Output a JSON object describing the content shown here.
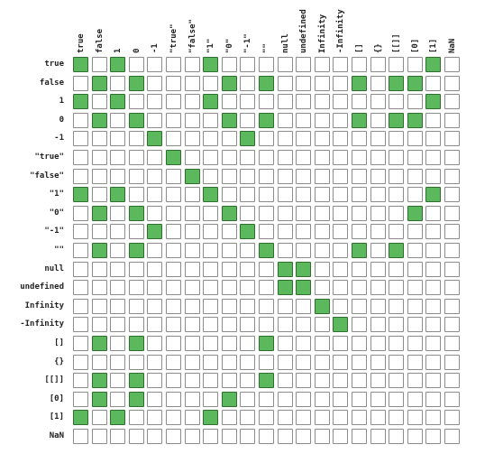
{
  "labels": [
    "true",
    "false",
    "1",
    "0",
    "-1",
    "\"true\"",
    "\"false\"",
    "\"1\"",
    "\"0\"",
    "\"-1\"",
    "\"\"",
    "null",
    "undefined",
    "Infinity",
    "-Infinity",
    "[]",
    "{}",
    "[[]]",
    "[0]",
    "[1]",
    "NaN"
  ],
  "chart_data": {
    "type": "heatmap",
    "rows": [
      "true",
      "false",
      "1",
      "0",
      "-1",
      "\"true\"",
      "\"false\"",
      "\"1\"",
      "\"0\"",
      "\"-1\"",
      "\"\"",
      "null",
      "undefined",
      "Infinity",
      "-Infinity",
      "[]",
      "{}",
      "[[]]",
      "[0]",
      "[1]",
      "NaN"
    ],
    "columns": [
      "true",
      "false",
      "1",
      "0",
      "-1",
      "\"true\"",
      "\"false\"",
      "\"1\"",
      "\"0\"",
      "\"-1\"",
      "\"\"",
      "null",
      "undefined",
      "Infinity",
      "-Infinity",
      "[]",
      "{}",
      "[[]]",
      "[0]",
      "[1]",
      "NaN"
    ],
    "values": [
      [
        1,
        0,
        1,
        0,
        0,
        0,
        0,
        1,
        0,
        0,
        0,
        0,
        0,
        0,
        0,
        0,
        0,
        0,
        0,
        1,
        0
      ],
      [
        0,
        1,
        0,
        1,
        0,
        0,
        0,
        0,
        1,
        0,
        1,
        0,
        0,
        0,
        0,
        1,
        0,
        1,
        1,
        0,
        0
      ],
      [
        1,
        0,
        1,
        0,
        0,
        0,
        0,
        1,
        0,
        0,
        0,
        0,
        0,
        0,
        0,
        0,
        0,
        0,
        0,
        1,
        0
      ],
      [
        0,
        1,
        0,
        1,
        0,
        0,
        0,
        0,
        1,
        0,
        1,
        0,
        0,
        0,
        0,
        1,
        0,
        1,
        1,
        0,
        0
      ],
      [
        0,
        0,
        0,
        0,
        1,
        0,
        0,
        0,
        0,
        1,
        0,
        0,
        0,
        0,
        0,
        0,
        0,
        0,
        0,
        0,
        0
      ],
      [
        0,
        0,
        0,
        0,
        0,
        1,
        0,
        0,
        0,
        0,
        0,
        0,
        0,
        0,
        0,
        0,
        0,
        0,
        0,
        0,
        0
      ],
      [
        0,
        0,
        0,
        0,
        0,
        0,
        1,
        0,
        0,
        0,
        0,
        0,
        0,
        0,
        0,
        0,
        0,
        0,
        0,
        0,
        0
      ],
      [
        1,
        0,
        1,
        0,
        0,
        0,
        0,
        1,
        0,
        0,
        0,
        0,
        0,
        0,
        0,
        0,
        0,
        0,
        0,
        1,
        0
      ],
      [
        0,
        1,
        0,
        1,
        0,
        0,
        0,
        0,
        1,
        0,
        0,
        0,
        0,
        0,
        0,
        0,
        0,
        0,
        1,
        0,
        0
      ],
      [
        0,
        0,
        0,
        0,
        1,
        0,
        0,
        0,
        0,
        1,
        0,
        0,
        0,
        0,
        0,
        0,
        0,
        0,
        0,
        0,
        0
      ],
      [
        0,
        1,
        0,
        1,
        0,
        0,
        0,
        0,
        0,
        0,
        1,
        0,
        0,
        0,
        0,
        1,
        0,
        1,
        0,
        0,
        0
      ],
      [
        0,
        0,
        0,
        0,
        0,
        0,
        0,
        0,
        0,
        0,
        0,
        1,
        1,
        0,
        0,
        0,
        0,
        0,
        0,
        0,
        0
      ],
      [
        0,
        0,
        0,
        0,
        0,
        0,
        0,
        0,
        0,
        0,
        0,
        1,
        1,
        0,
        0,
        0,
        0,
        0,
        0,
        0,
        0
      ],
      [
        0,
        0,
        0,
        0,
        0,
        0,
        0,
        0,
        0,
        0,
        0,
        0,
        0,
        1,
        0,
        0,
        0,
        0,
        0,
        0,
        0
      ],
      [
        0,
        0,
        0,
        0,
        0,
        0,
        0,
        0,
        0,
        0,
        0,
        0,
        0,
        0,
        1,
        0,
        0,
        0,
        0,
        0,
        0
      ],
      [
        0,
        1,
        0,
        1,
        0,
        0,
        0,
        0,
        0,
        0,
        1,
        0,
        0,
        0,
        0,
        0,
        0,
        0,
        0,
        0,
        0
      ],
      [
        0,
        0,
        0,
        0,
        0,
        0,
        0,
        0,
        0,
        0,
        0,
        0,
        0,
        0,
        0,
        0,
        0,
        0,
        0,
        0,
        0
      ],
      [
        0,
        1,
        0,
        1,
        0,
        0,
        0,
        0,
        0,
        0,
        1,
        0,
        0,
        0,
        0,
        0,
        0,
        0,
        0,
        0,
        0
      ],
      [
        0,
        1,
        0,
        1,
        0,
        0,
        0,
        0,
        1,
        0,
        0,
        0,
        0,
        0,
        0,
        0,
        0,
        0,
        0,
        0,
        0
      ],
      [
        1,
        0,
        1,
        0,
        0,
        0,
        0,
        1,
        0,
        0,
        0,
        0,
        0,
        0,
        0,
        0,
        0,
        0,
        0,
        0,
        0
      ],
      [
        0,
        0,
        0,
        0,
        0,
        0,
        0,
        0,
        0,
        0,
        0,
        0,
        0,
        0,
        0,
        0,
        0,
        0,
        0,
        0,
        0
      ]
    ]
  },
  "colors": {
    "on": "#5cb85c",
    "off": "#ffffff",
    "border": "#8c8c8c"
  }
}
